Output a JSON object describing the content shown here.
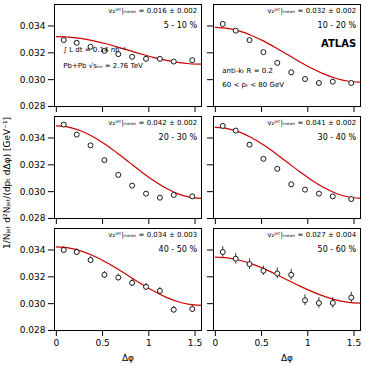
{
  "chart_data": [
    {
      "type": "scatter",
      "xlim": [
        -0.02,
        1.57
      ],
      "ylim": [
        0.028,
        0.0356
      ],
      "xticks": [
        0,
        0.5,
        1,
        1.5
      ],
      "yticks": [
        0.028,
        {
          "value": 0.03,
          "label": "0.030"
        },
        0.032,
        0.034
      ],
      "grid": false,
      "tick_labels": "y",
      "annotations": [
        "v₂ʲᵉᵗ|ₘₑₐₛ = 0.016 ± 0.002",
        "5 - 10 %",
        "∫ L dt = 0.14 nb⁻¹",
        "Pb+Pb √sₙₙ = 2.76 TeV"
      ],
      "series": [
        {
          "type": "scatter",
          "color": "black",
          "marker": "circle",
          "x": [
            0.08,
            0.22,
            0.37,
            0.52,
            0.67,
            0.82,
            0.97,
            1.12,
            1.27,
            1.47
          ],
          "values": [
            0.03295,
            0.03275,
            0.03245,
            0.03215,
            0.0319,
            0.0317,
            0.03155,
            0.03155,
            0.03135,
            0.03145
          ]
        },
        {
          "type": "line",
          "color": "#cc0000",
          "x": [
            0,
            0.1309,
            0.261799,
            0.392699,
            0.523599,
            0.654498,
            0.785398,
            0.916298,
            1.047198,
            1.178097,
            1.308997,
            1.439897,
            1.57
          ],
          "values": [
            0.0332098,
            0.0331747,
            0.0330718,
            0.0329082,
            0.0326949,
            0.0324465,
            0.03218,
            0.0319135,
            0.0316651,
            0.0314519,
            0.0312882,
            0.0311853,
            0.0311502
          ]
        }
      ]
    },
    {
      "type": "scatter",
      "xlim": [
        -0.02,
        1.57
      ],
      "ylim": [
        0.028,
        0.0356
      ],
      "xticks": [
        0,
        0.5,
        1,
        1.5
      ],
      "yticks": [
        0.028,
        {
          "value": 0.03,
          "label": "0.030"
        },
        0.032,
        0.034
      ],
      "grid": false,
      "tick_labels": false,
      "annotations": [
        "v₂ʲᵉᵗ|ₘₑₐₛ = 0.032 ± 0.002",
        "10 - 20 %",
        "ATLAS",
        "anti-kₜ R = 0.2",
        "60 < pₜ < 80 GeV"
      ],
      "series": [
        {
          "type": "scatter",
          "color": "black",
          "marker": "circle",
          "x": [
            0.08,
            0.22,
            0.37,
            0.52,
            0.67,
            0.82,
            0.97,
            1.12,
            1.27,
            1.47
          ],
          "values": [
            0.03415,
            0.03365,
            0.03295,
            0.03205,
            0.03125,
            0.03055,
            0.03005,
            0.02975,
            0.02985,
            0.02975
          ]
        },
        {
          "type": "line",
          "color": "#cc0000",
          "x": [
            0,
            0.1309,
            0.261799,
            0.392699,
            0.523599,
            0.654498,
            0.785398,
            0.916298,
            1.047198,
            1.178097,
            1.308997,
            1.439897,
            1.57
          ],
          "values": [
            0.0338884,
            0.0338189,
            0.0336153,
            0.0332914,
            0.0328692,
            0.0323776,
            0.03185,
            0.0313224,
            0.0308308,
            0.0304086,
            0.0300847,
            0.0298811,
            0.0298116
          ]
        }
      ]
    },
    {
      "type": "scatter",
      "xlim": [
        -0.02,
        1.57
      ],
      "ylim": [
        0.028,
        0.0356
      ],
      "xticks": [
        0,
        0.5,
        1,
        1.5
      ],
      "yticks": [
        0.028,
        {
          "value": 0.03,
          "label": "0.030"
        },
        0.032,
        0.034
      ],
      "grid": false,
      "tick_labels": "y",
      "ylabel": "1/Nⱼₑₜ d²Nⱼₑₜ/(dpₜ dΔφ) [GeV⁻¹]",
      "annotations": [
        "v₂ʲᵉᵗ|ₘₑₐₛ = 0.042 ± 0.002",
        "20 - 30 %"
      ],
      "series": [
        {
          "type": "scatter",
          "color": "black",
          "marker": "circle",
          "x": [
            0.08,
            0.22,
            0.37,
            0.52,
            0.67,
            0.82,
            0.97,
            1.12,
            1.27,
            1.47
          ],
          "values": [
            0.035,
            0.03425,
            0.03345,
            0.03235,
            0.03125,
            0.03045,
            0.02985,
            0.02955,
            0.02975,
            0.02965
          ]
        },
        {
          "type": "line",
          "color": "#cc0000",
          "x": [
            0,
            0.1309,
            0.261799,
            0.392699,
            0.523599,
            0.654498,
            0.785398,
            0.916298,
            1.047198,
            1.178097,
            1.308997,
            1.439897,
            1.57
          ],
          "values": [
            0.0349048,
            0.0348126,
            0.0345424,
            0.0341126,
            0.0335524,
            0.0329001,
            0.0322,
            0.0315,
            0.0308476,
            0.0302874,
            0.0298576,
            0.0295874,
            0.0294952
          ]
        }
      ]
    },
    {
      "type": "scatter",
      "xlim": [
        -0.02,
        1.57
      ],
      "ylim": [
        0.028,
        0.0356
      ],
      "xticks": [
        0,
        0.5,
        1,
        1.5
      ],
      "yticks": [
        0.028,
        {
          "value": 0.03,
          "label": "0.030"
        },
        0.032,
        0.034
      ],
      "grid": false,
      "tick_labels": false,
      "annotations": [
        "v₂ʲᵉᵗ|ₘₑₐₛ = 0.041 ± 0.002",
        "30 - 40 %"
      ],
      "series": [
        {
          "type": "scatter",
          "color": "black",
          "marker": "circle",
          "x": [
            0.08,
            0.22,
            0.37,
            0.52,
            0.67,
            0.82,
            0.97,
            1.12,
            1.27,
            1.47
          ],
          "values": [
            0.0349,
            0.03455,
            0.0335,
            0.03245,
            0.0317,
            0.03055,
            0.03015,
            0.02985,
            0.02965,
            0.02945
          ]
        },
        {
          "type": "line",
          "color": "#cc0000",
          "x": [
            0,
            0.1309,
            0.261799,
            0.392699,
            0.523599,
            0.654498,
            0.785398,
            0.916298,
            1.047198,
            1.178097,
            1.308997,
            1.439897,
            1.57
          ],
          "values": [
            0.0347863,
            0.0346965,
            0.0344331,
            0.0340142,
            0.0334682,
            0.0328323,
            0.03215,
            0.0314677,
            0.0308319,
            0.0302859,
            0.0298669,
            0.0296035,
            0.0295137
          ]
        }
      ]
    },
    {
      "type": "scatter",
      "xlim": [
        -0.02,
        1.57
      ],
      "ylim": [
        0.028,
        0.0356
      ],
      "xticks": [
        0,
        0.5,
        1,
        1.5
      ],
      "yticks": [
        0.028,
        {
          "value": 0.03,
          "label": "0.030"
        },
        0.032,
        0.034
      ],
      "grid": false,
      "tick_labels": true,
      "xlabel": "Δφ",
      "annotations": [
        "v₂ʲᵉᵗ|ₘₑₐₛ = 0.034 ± 0.003",
        "40 - 50 %"
      ],
      "series": [
        {
          "type": "scatter",
          "color": "black",
          "marker": "circle",
          "x": [
            0.08,
            0.22,
            0.37,
            0.52,
            0.67,
            0.82,
            0.97,
            1.12,
            1.27,
            1.47
          ],
          "values": [
            0.034,
            0.03385,
            0.03325,
            0.03215,
            0.03195,
            0.03155,
            0.03125,
            0.03095,
            0.02955,
            0.0296
          ],
          "yerr": [
            0.00025,
            0.00025,
            0.00025,
            0.00025,
            0.00025,
            0.00025,
            0.00025,
            0.00025,
            0.00025,
            0.00025
          ]
        },
        {
          "type": "line",
          "color": "#cc0000",
          "x": [
            0,
            0.1309,
            0.261799,
            0.392699,
            0.523599,
            0.654498,
            0.785398,
            0.916298,
            1.047198,
            1.178097,
            1.308997,
            1.439897,
            1.57
          ],
          "values": [
            0.0342294,
            0.0341551,
            0.0339374,
            0.0335911,
            0.0331397,
            0.0326141,
            0.03205,
            0.0314859,
            0.0309603,
            0.0305089,
            0.0301626,
            0.0299449,
            0.0298706
          ]
        }
      ]
    },
    {
      "type": "scatter",
      "xlim": [
        -0.02,
        1.57
      ],
      "ylim": [
        0.028,
        0.0356
      ],
      "xticks": [
        0,
        0.5,
        1,
        1.5
      ],
      "yticks": [
        0.028,
        {
          "value": 0.03,
          "label": "0.030"
        },
        0.032,
        0.034
      ],
      "grid": false,
      "tick_labels": "x",
      "xlabel": "Δφ",
      "annotations": [
        "v₂ʲᵉᵗ|ₘₑₐₛ = 0.027 ± 0.004",
        "50 - 60 %"
      ],
      "series": [
        {
          "type": "scatter",
          "color": "black",
          "marker": "circle",
          "x": [
            0.08,
            0.22,
            0.37,
            0.52,
            0.67,
            0.82,
            0.97,
            1.12,
            1.27,
            1.47
          ],
          "values": [
            0.03385,
            0.03335,
            0.03295,
            0.03245,
            0.03225,
            0.03215,
            0.03025,
            0.03005,
            0.03005,
            0.03045
          ],
          "yerr": [
            0.0004,
            0.0004,
            0.0004,
            0.00035,
            0.0004,
            0.0004,
            0.0004,
            0.0004,
            0.0004,
            0.0004
          ]
        },
        {
          "type": "line",
          "color": "#cc0000",
          "x": [
            0,
            0.1309,
            0.261799,
            0.392699,
            0.523599,
            0.654498,
            0.785398,
            0.916298,
            1.047198,
            1.178097,
            1.308997,
            1.439897,
            1.57
          ],
          "values": [
            0.0334645,
            0.0334061,
            0.0332348,
            0.0329623,
            0.0326073,
            0.0321937,
            0.03175,
            0.0313063,
            0.0308928,
            0.0305377,
            0.0302652,
            0.0300939,
            0.0300355
          ]
        }
      ]
    }
  ]
}
